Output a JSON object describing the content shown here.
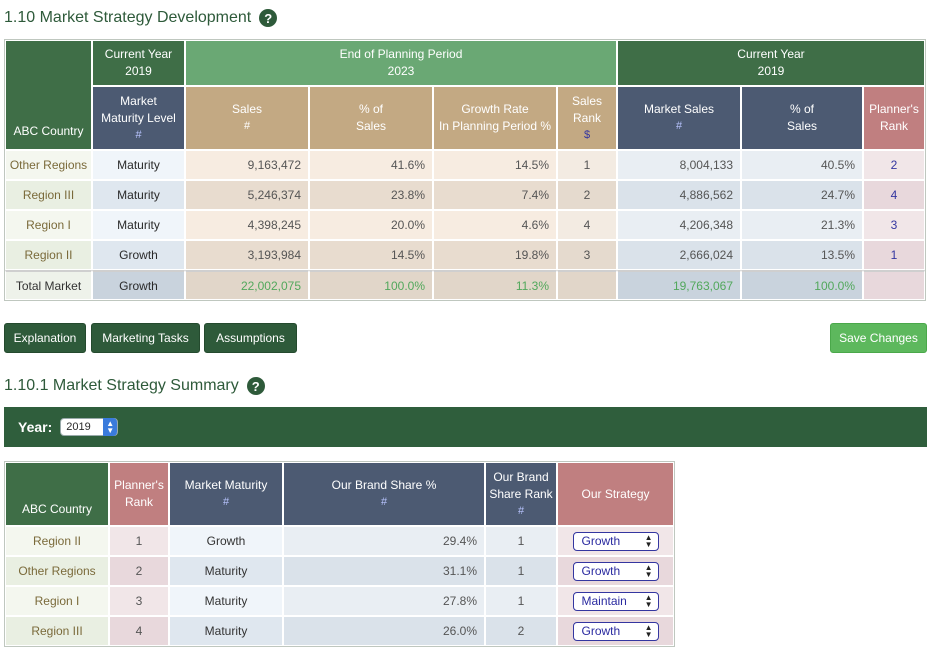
{
  "section1": {
    "title": "1.10 Market Strategy Development"
  },
  "table1": {
    "headers": {
      "country": "ABC Country",
      "current_year_top": "Current Year",
      "current_year_top_year": "2019",
      "end_planning": "End of Planning Period",
      "end_planning_year": "2023",
      "current_year_right": "Current Year",
      "current_year_right_year": "2019",
      "market_maturity_1": "Market",
      "market_maturity_2": "Maturity Level",
      "market_maturity_sub": "#",
      "sales": "Sales",
      "sales_sub": "#",
      "pct_sales_1": "% of",
      "pct_sales_2": "Sales",
      "growth_rate_1": "Growth Rate",
      "growth_rate_2": "In Planning Period %",
      "sales_rank_1": "Sales",
      "sales_rank_2": "Rank",
      "sales_rank_sub": "$",
      "market_sales": "Market Sales",
      "market_sales_sub": "#",
      "pct_of_1": "% of",
      "pct_of_2": "Sales",
      "planners_rank_1": "Planner's",
      "planners_rank_2": "Rank"
    },
    "rows": [
      {
        "name": "Other Regions",
        "maturity": "Maturity",
        "sales": "9,163,472",
        "pct": "41.6%",
        "growth": "14.5%",
        "rank": "1",
        "market_sales": "8,004,133",
        "market_pct": "40.5%",
        "planner": "2"
      },
      {
        "name": "Region III",
        "maturity": "Maturity",
        "sales": "5,246,374",
        "pct": "23.8%",
        "growth": "7.4%",
        "rank": "2",
        "market_sales": "4,886,562",
        "market_pct": "24.7%",
        "planner": "4"
      },
      {
        "name": "Region I",
        "maturity": "Maturity",
        "sales": "4,398,245",
        "pct": "20.0%",
        "growth": "4.6%",
        "rank": "4",
        "market_sales": "4,206,348",
        "market_pct": "21.3%",
        "planner": "3"
      },
      {
        "name": "Region II",
        "maturity": "Growth",
        "sales": "3,193,984",
        "pct": "14.5%",
        "growth": "19.8%",
        "rank": "3",
        "market_sales": "2,666,024",
        "market_pct": "13.5%",
        "planner": "1"
      }
    ],
    "total": {
      "name": "Total Market",
      "maturity": "Growth",
      "sales": "22,002,075",
      "pct": "100.0%",
      "growth": "11.3%",
      "market_sales": "19,763,067",
      "market_pct": "100.0%"
    }
  },
  "buttons": {
    "explanation": "Explanation",
    "marketing_tasks": "Marketing Tasks",
    "assumptions": "Assumptions",
    "save_changes": "Save Changes"
  },
  "section2": {
    "title": "1.10.1 Market Strategy Summary"
  },
  "year_bar": {
    "label": "Year:",
    "selected": "2019"
  },
  "table2": {
    "headers": {
      "country": "ABC Country",
      "planners_rank_1": "Planner's",
      "planners_rank_2": "Rank",
      "market_maturity": "Market Maturity",
      "market_maturity_sub": "#",
      "brand_share": "Our Brand Share %",
      "brand_share_sub": "#",
      "brand_rank_1": "Our Brand",
      "brand_rank_2": "Share Rank",
      "brand_rank_sub": "#",
      "strategy": "Our Strategy"
    },
    "rows": [
      {
        "name": "Region II",
        "rank": "1",
        "maturity": "Growth",
        "share": "29.4%",
        "brand_rank": "1",
        "strategy": "Growth"
      },
      {
        "name": "Other Regions",
        "rank": "2",
        "maturity": "Maturity",
        "share": "31.1%",
        "brand_rank": "1",
        "strategy": "Growth"
      },
      {
        "name": "Region I",
        "rank": "3",
        "maturity": "Maturity",
        "share": "27.8%",
        "brand_rank": "1",
        "strategy": "Maintain"
      },
      {
        "name": "Region III",
        "rank": "4",
        "maturity": "Maturity",
        "share": "26.0%",
        "brand_rank": "2",
        "strategy": "Growth"
      }
    ]
  },
  "colors": {
    "dark_green": "#2e5a3a",
    "light_green": "#6aa874",
    "slate": "#4c5a72",
    "tan": "#c3a983",
    "rose": "#c07f80",
    "save_green": "#5db85d",
    "positive_text": "#52a85c"
  },
  "icons": {
    "help": "question-circle-icon",
    "select": "chevron-up-down-icon"
  }
}
